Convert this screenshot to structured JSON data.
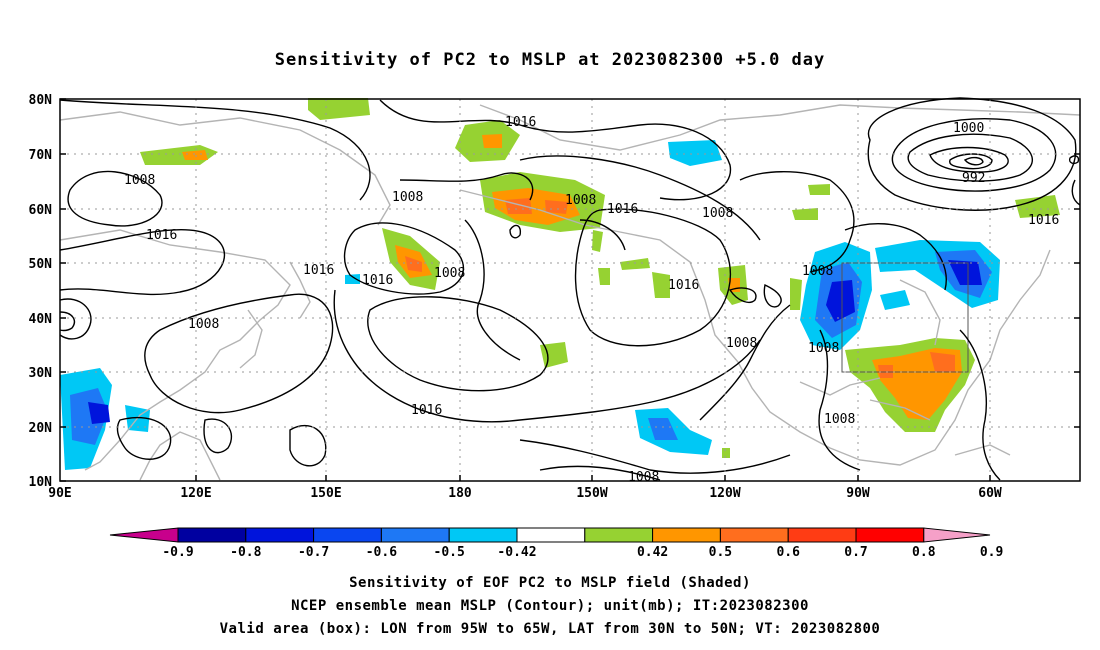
{
  "title": "Sensitivity of PC2 to MSLP at 2023082300 +5.0 day",
  "axes": {
    "lat_labels": [
      "80N",
      "70N",
      "60N",
      "50N",
      "40N",
      "30N",
      "20N",
      "10N"
    ],
    "lon_labels": [
      "90E",
      "120E",
      "150E",
      "180",
      "150W",
      "120W",
      "90W",
      "60W"
    ]
  },
  "colorbar": {
    "labels": [
      "-0.9",
      "-0.8",
      "-0.7",
      "-0.6",
      "-0.5",
      "-0.42",
      "0.42",
      "0.5",
      "0.6",
      "0.7",
      "0.8",
      "0.9"
    ],
    "colors": [
      "#c8008c",
      "#0000a0",
      "#0014dc",
      "#0a46f0",
      "#1e78f5",
      "#00c8f5",
      "#ffffff",
      "#96d232",
      "#ff9600",
      "#ff6e1e",
      "#ff3c14",
      "#ff0000",
      "#f5a0c8"
    ]
  },
  "contour_labels": [
    "1016",
    "1008",
    "1016",
    "1008",
    "1008",
    "1016",
    "1008",
    "1016",
    "1008",
    "1016",
    "1008",
    "1016",
    "1000",
    "992",
    "1016",
    "1008",
    "1008",
    "1008",
    "1008",
    "1008",
    "1016",
    "1008",
    "1016",
    "1008"
  ],
  "captions": {
    "line1": "Sensitivity of EOF PC2 to MSLP field (Shaded)",
    "line2": "NCEP ensemble mean MSLP (Contour); unit(mb); IT:2023082300",
    "line3": "Valid area (box): LON from 95W to 65W, LAT from 30N to 50N; VT: 2023082800"
  }
}
